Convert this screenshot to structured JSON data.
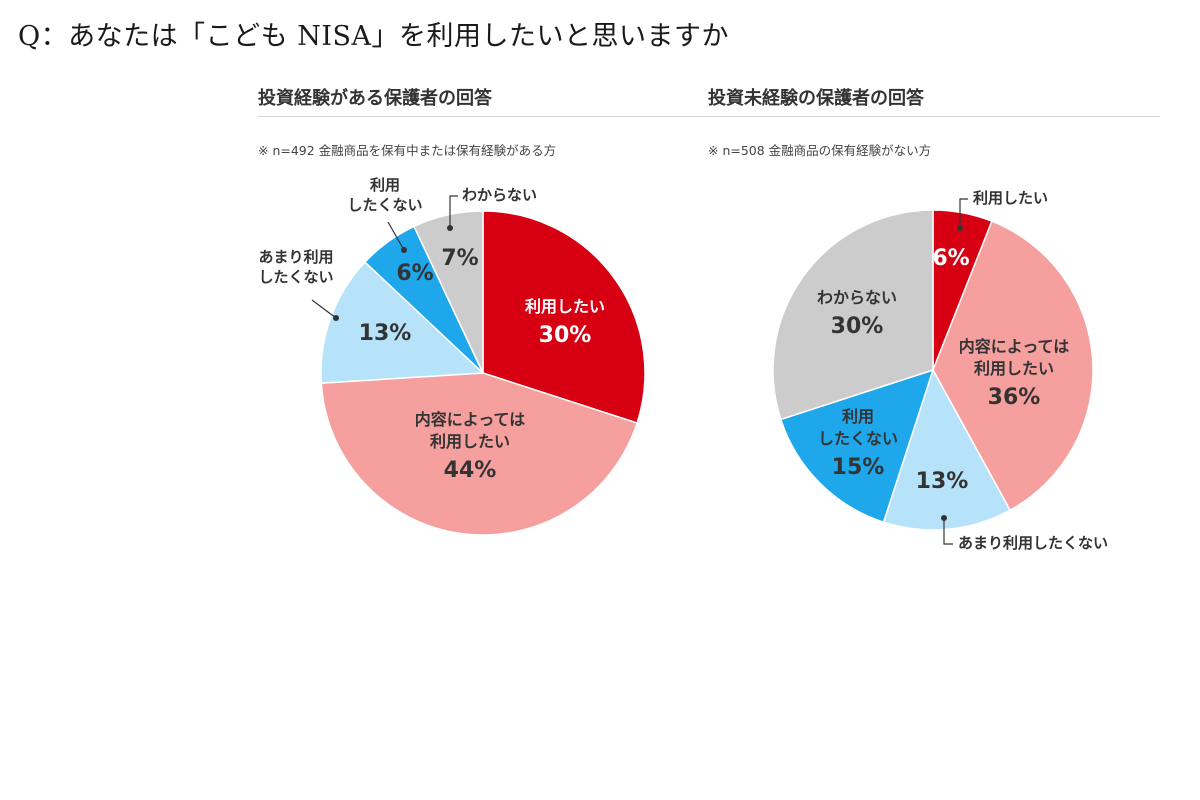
{
  "question": "Q：あなたは「こども NISA」を利用したいと思いますか",
  "chart_data": [
    {
      "type": "pie",
      "title": "投資経験がある保護者の回答",
      "note": "※ n=492 金融商品を保有中または保有経験がある方",
      "slices": [
        {
          "label": "利用したい",
          "value": 30,
          "display": "30%",
          "color": "#d60012"
        },
        {
          "label": "内容によっては利用したい",
          "value": 44,
          "display": "44%",
          "color": "#f59f9f"
        },
        {
          "label": "あまり利用したくない",
          "value": 13,
          "display": "13%",
          "color": "#b7e3fa"
        },
        {
          "label": "利用したくない",
          "value": 6,
          "display": "6%",
          "color": "#1fa7ec"
        },
        {
          "label": "わからない",
          "value": 7,
          "display": "7%",
          "color": "#cccccc"
        }
      ]
    },
    {
      "type": "pie",
      "title": "投資未経験の保護者の回答",
      "note": "※ n=508 金融商品の保有経験がない方",
      "slices": [
        {
          "label": "利用したい",
          "value": 6,
          "display": "6%",
          "color": "#d60012"
        },
        {
          "label": "内容によっては利用したい",
          "value": 36,
          "display": "36%",
          "color": "#f59f9f"
        },
        {
          "label": "あまり利用したくない",
          "value": 13,
          "display": "13%",
          "color": "#b7e3fa"
        },
        {
          "label": "利用したくない",
          "value": 15,
          "display": "15%",
          "color": "#1fa7ec"
        },
        {
          "label": "わからない",
          "value": 30,
          "display": "30%",
          "color": "#cccccc"
        }
      ]
    }
  ]
}
